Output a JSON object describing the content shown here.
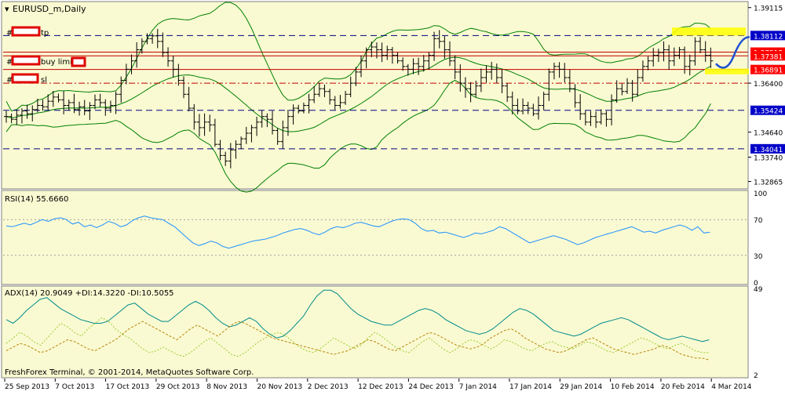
{
  "window_title": "EURUSD_m,Daily",
  "copyright": "FreshForex Terminal, © 2001-2014, MetaQuotes Software Corp.",
  "colors": {
    "background": "#fafad2",
    "axis_bg": "#ffffff",
    "bars": "#000000",
    "bollinger": "#008000",
    "hline_blue": "#000080",
    "hline_red": "#c00000",
    "rsi_line": "#1e90ff",
    "adx_line": "#008b8b",
    "di_plus": "#9acd32",
    "di_minus": "#b8860b",
    "tag_blue_bg": "#0000c8",
    "tag_red_bg": "#ff0000",
    "highlight": "#ffff00",
    "redact_box": "#e00000"
  },
  "labels": {
    "tp_suffix": "tp",
    "buy_limit_label": "buy limit",
    "sl_suffix": "sl",
    "hash": "#"
  },
  "chart_data": [
    {
      "type": "candlestick",
      "name": "EURUSD_m,Daily",
      "ylim": [
        1.3274,
        1.3922
      ],
      "y_ticks": [
        "1.39115",
        "1.38112",
        "1.37515",
        "1.37381",
        "1.36891",
        "1.36400",
        "1.35424",
        "1.34640",
        "1.34041",
        "1.33740",
        "1.32865"
      ],
      "x_ticks": [
        "25 Sep 2013",
        "7 Oct 2013",
        "17 Oct 2013",
        "29 Oct 2013",
        "8 Nov 2013",
        "20 Nov 2013",
        "2 Dec 2013",
        "12 Dec 2013",
        "24 Dec 2013",
        "7 Jan 2014",
        "17 Jan 2014",
        "29 Jan 2014",
        "10 Feb 2014",
        "20 Feb 2014",
        "4 Mar 2014"
      ],
      "levels": [
        {
          "value": 1.38112,
          "label": "1.38112",
          "kind": "tp",
          "tag_color": "blue",
          "style": "dashed"
        },
        {
          "value": 1.37515,
          "label": "1.37515",
          "kind": "entry",
          "tag_color": "red",
          "style": "solid"
        },
        {
          "value": 1.37381,
          "label": "1.37381",
          "kind": "price",
          "tag_color": "red",
          "style": "solid"
        },
        {
          "value": 1.36891,
          "label": "1.36891",
          "kind": "buy limit",
          "tag_color": "red",
          "style": "solid"
        },
        {
          "value": 1.364,
          "label": "",
          "kind": "sl",
          "tag_color": "red",
          "style": "dashdot"
        },
        {
          "value": 1.35424,
          "label": "1.35424",
          "kind": "support",
          "tag_color": "blue",
          "style": "dashed"
        },
        {
          "value": 1.34041,
          "label": "1.34041",
          "kind": "support",
          "tag_color": "blue",
          "style": "dashed"
        }
      ],
      "ohlc_close": [
        1.352,
        1.351,
        1.3525,
        1.354,
        1.353,
        1.3545,
        1.356,
        1.3555,
        1.3575,
        1.359,
        1.358,
        1.356,
        1.357,
        1.3545,
        1.3555,
        1.354,
        1.356,
        1.358,
        1.357,
        1.355,
        1.356,
        1.36,
        1.365,
        1.369,
        1.372,
        1.376,
        1.379,
        1.38,
        1.381,
        1.379,
        1.375,
        1.372,
        1.369,
        1.365,
        1.36,
        1.355,
        1.35,
        1.348,
        1.35,
        1.349,
        1.342,
        1.338,
        1.336,
        1.34,
        1.342,
        1.344,
        1.346,
        1.348,
        1.35,
        1.352,
        1.351,
        1.347,
        1.343,
        1.348,
        1.352,
        1.355,
        1.354,
        1.356,
        1.358,
        1.36,
        1.362,
        1.361,
        1.358,
        1.356,
        1.357,
        1.36,
        1.364,
        1.368,
        1.372,
        1.376,
        1.377,
        1.376,
        1.374,
        1.376,
        1.374,
        1.372,
        1.37,
        1.369,
        1.371,
        1.37,
        1.372,
        1.374,
        1.38,
        1.379,
        1.376,
        1.372,
        1.368,
        1.364,
        1.362,
        1.36,
        1.363,
        1.366,
        1.368,
        1.369,
        1.366,
        1.363,
        1.359,
        1.356,
        1.354,
        1.356,
        1.355,
        1.353,
        1.356,
        1.36,
        1.368,
        1.37,
        1.369,
        1.366,
        1.362,
        1.357,
        1.353,
        1.35,
        1.352,
        1.35,
        1.353,
        1.351,
        1.358,
        1.362,
        1.361,
        1.364,
        1.36,
        1.366,
        1.37,
        1.372,
        1.374,
        1.375,
        1.376,
        1.372,
        1.374,
        1.376,
        1.37,
        1.372,
        1.379,
        1.376,
        1.374,
        1.372
      ]
    },
    {
      "type": "line",
      "name": "RSI(14) 55.6660",
      "ylim": [
        0,
        100
      ],
      "y_ticks": [
        "100",
        "70",
        "30",
        "0"
      ],
      "levels": [
        70,
        30
      ],
      "values": [
        63,
        62,
        64,
        66,
        64,
        67,
        70,
        68,
        71,
        72,
        70,
        65,
        67,
        62,
        64,
        61,
        64,
        68,
        66,
        62,
        64,
        69,
        72,
        74,
        72,
        71,
        70,
        66,
        62,
        56,
        50,
        44,
        41,
        43,
        46,
        44,
        40,
        38,
        40,
        42,
        44,
        46,
        47,
        48,
        50,
        52,
        55,
        57,
        59,
        60,
        58,
        55,
        53,
        56,
        60,
        62,
        61,
        63,
        66,
        67,
        65,
        63,
        62,
        65,
        68,
        70,
        71,
        70,
        66,
        60,
        57,
        58,
        55,
        56,
        54,
        52,
        50,
        52,
        55,
        54,
        56,
        58,
        62,
        60,
        56,
        52,
        48,
        44,
        46,
        48,
        50,
        52,
        50,
        48,
        45,
        42,
        44,
        47,
        50,
        52,
        54,
        56,
        58,
        60,
        62,
        59,
        56,
        57,
        55,
        58,
        60,
        62,
        64,
        62,
        58,
        62,
        55,
        56
      ]
    },
    {
      "type": "line",
      "name": "ADX(14) 20.9049 +DI:14.3220 -DI:10.5055",
      "ylim": [
        2,
        49
      ],
      "y_ticks": [
        "49",
        "2"
      ],
      "series": [
        {
          "name": "ADX",
          "values": [
            32,
            30,
            33,
            37,
            40,
            43,
            44,
            41,
            38,
            36,
            34,
            32,
            31,
            30,
            30,
            31,
            34,
            37,
            40,
            41,
            38,
            35,
            33,
            31,
            31,
            34,
            37,
            40,
            42,
            40,
            37,
            33,
            30,
            28,
            29,
            31,
            33,
            31,
            27,
            24,
            22,
            23,
            26,
            30,
            34,
            40,
            45,
            48,
            48,
            46,
            42,
            38,
            35,
            33,
            31,
            30,
            29,
            29,
            31,
            33,
            35,
            37,
            38,
            37,
            35,
            32,
            30,
            28,
            26,
            25,
            24,
            25,
            27,
            30,
            33,
            36,
            38,
            37,
            35,
            32,
            29,
            26,
            25,
            24,
            23,
            24,
            26,
            28,
            30,
            31,
            32,
            33,
            32,
            30,
            28,
            26,
            24,
            22,
            21,
            22,
            23,
            22,
            21,
            20,
            21
          ]
        },
        {
          "name": "+DI",
          "values": [
            19,
            22,
            25,
            23,
            20,
            18,
            22,
            26,
            30,
            28,
            25,
            23,
            27,
            30,
            33,
            31,
            27,
            24,
            22,
            19,
            16,
            14,
            15,
            17,
            15,
            13,
            12,
            14,
            17,
            20,
            22,
            19,
            16,
            13,
            12,
            14,
            17,
            20,
            22,
            24,
            25,
            23,
            20,
            17,
            15,
            14,
            16,
            19,
            22,
            20,
            18,
            16,
            18,
            22,
            25,
            23,
            20,
            17,
            15,
            14,
            17,
            20,
            22,
            19,
            16,
            14,
            16,
            19,
            21,
            20,
            18,
            16,
            18,
            21,
            20,
            18,
            16,
            15,
            17,
            19,
            20,
            18,
            17,
            16,
            18,
            20,
            19,
            17,
            15,
            14,
            16,
            18,
            20,
            22,
            21,
            19,
            17,
            16,
            18,
            19,
            17,
            15,
            14,
            14
          ]
        },
        {
          "name": "-DI",
          "values": [
            15,
            17,
            19,
            18,
            16,
            14,
            15,
            17,
            19,
            21,
            20,
            18,
            16,
            15,
            17,
            19,
            21,
            24,
            27,
            29,
            31,
            29,
            27,
            25,
            23,
            21,
            24,
            27,
            29,
            27,
            25,
            23,
            26,
            29,
            31,
            30,
            28,
            26,
            24,
            22,
            21,
            20,
            19,
            18,
            17,
            16,
            15,
            14,
            13,
            14,
            15,
            17,
            19,
            21,
            20,
            18,
            16,
            15,
            17,
            19,
            21,
            23,
            25,
            24,
            22,
            20,
            18,
            17,
            16,
            17,
            19,
            22,
            24,
            26,
            27,
            25,
            22,
            20,
            18,
            16,
            15,
            14,
            15,
            17,
            19,
            21,
            22,
            20,
            18,
            16,
            15,
            14,
            13,
            14,
            15,
            16,
            18,
            17,
            15,
            13,
            12,
            11,
            11,
            10
          ]
        }
      ]
    }
  ]
}
